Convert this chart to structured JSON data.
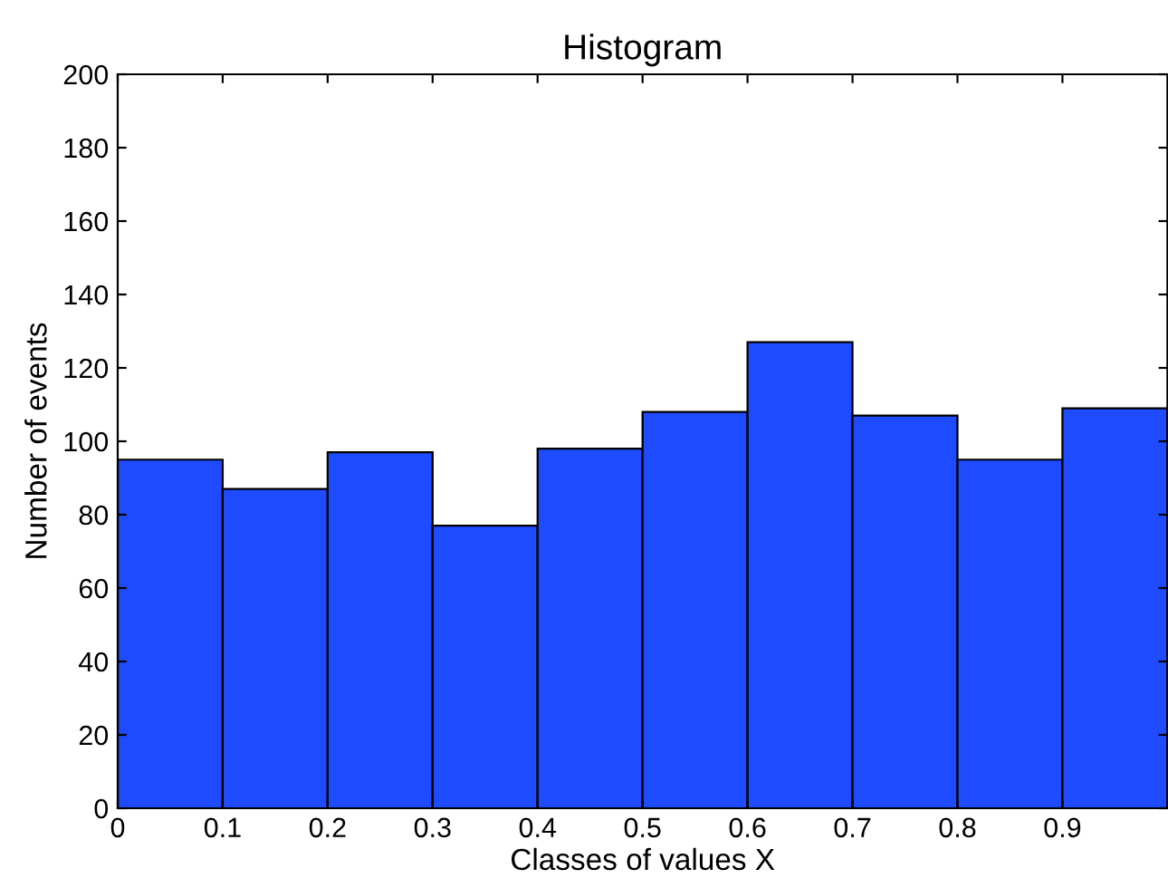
{
  "chart_data": {
    "type": "histogram",
    "title": "Histogram",
    "xlabel": "Classes of values X",
    "ylabel": "Number of events",
    "bins": [
      0,
      0.1,
      0.2,
      0.3,
      0.4,
      0.5,
      0.6,
      0.7,
      0.8,
      0.9,
      1.0
    ],
    "values": [
      95,
      87,
      97,
      77,
      98,
      108,
      127,
      107,
      95,
      109
    ],
    "color": "#1f4bff",
    "xlim": [
      0,
      1
    ],
    "xticks": [
      0,
      0.1,
      0.2,
      0.3,
      0.4,
      0.5,
      0.6,
      0.7,
      0.8,
      0.9
    ],
    "ylim": [
      0,
      200
    ],
    "yticks": [
      0,
      20,
      40,
      60,
      80,
      100,
      120,
      140,
      160,
      180,
      200
    ],
    "grid": false
  }
}
